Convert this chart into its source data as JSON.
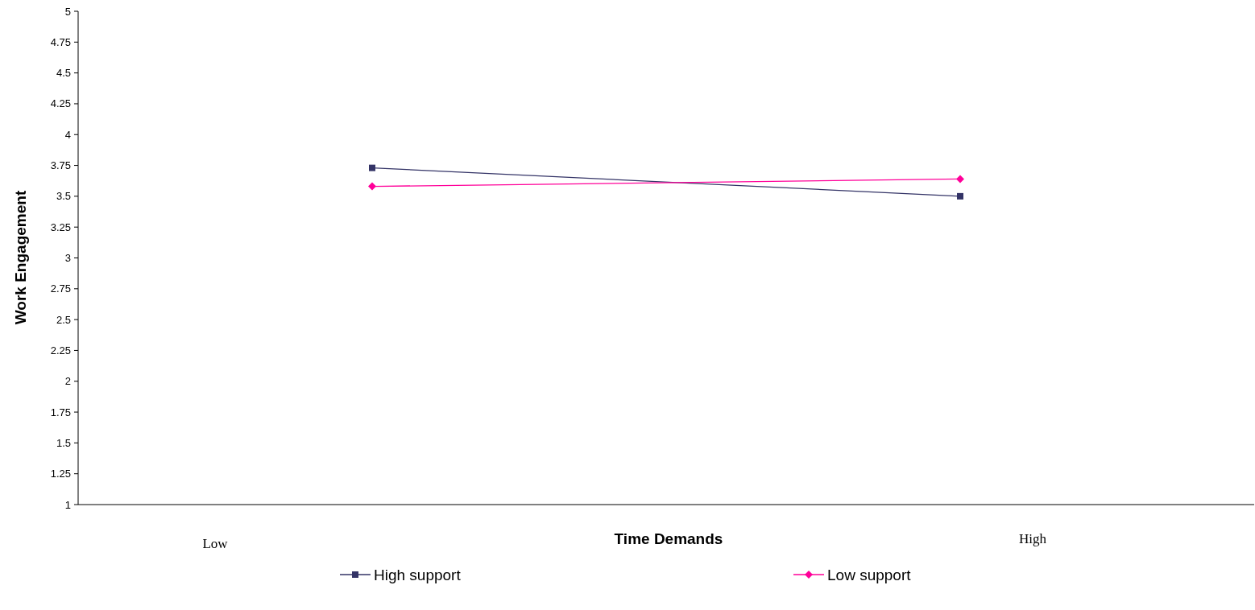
{
  "chart_data": {
    "type": "line",
    "xlabel": "Time Demands",
    "ylabel": "Work Engagement",
    "categories": [
      null,
      null
    ],
    "ylim": [
      1,
      5
    ],
    "yticks": [
      1,
      1.25,
      1.5,
      1.75,
      2,
      2.25,
      2.5,
      2.75,
      3,
      3.25,
      3.5,
      3.75,
      4,
      4.25,
      4.5,
      4.75,
      5
    ],
    "series": [
      {
        "name": "High support",
        "color": "#333366",
        "values": [
          3.73,
          3.5
        ],
        "marker": "square"
      },
      {
        "name": "Low support",
        "color": "#ff0099",
        "values": [
          3.58,
          3.64
        ],
        "marker": "diamond"
      }
    ],
    "annotations": [
      "Low",
      "High"
    ],
    "legend": "bottom",
    "grid": false
  }
}
